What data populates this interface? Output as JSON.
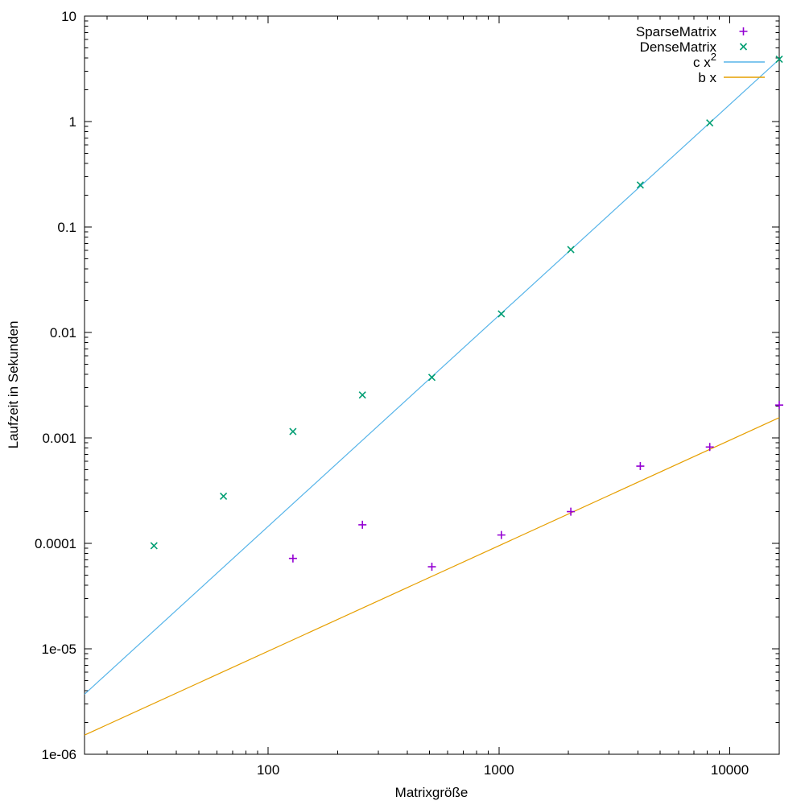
{
  "chart_data": {
    "type": "scatter",
    "log_x": true,
    "log_y": true,
    "title": "",
    "xlabel": "Matrixgröße",
    "ylabel": "Laufzeit in Sekunden",
    "xlim": [
      16,
      16384
    ],
    "ylim": [
      1e-06,
      10
    ],
    "grid": false,
    "legend_position": "top-right-inside",
    "x_ticks": [
      {
        "v": 100,
        "label": "100"
      },
      {
        "v": 1000,
        "label": "1000"
      },
      {
        "v": 10000,
        "label": "10000"
      }
    ],
    "y_ticks": [
      {
        "v": 1e-06,
        "label": "1e-06"
      },
      {
        "v": 1e-05,
        "label": "1e-05"
      },
      {
        "v": 0.0001,
        "label": "0.0001"
      },
      {
        "v": 0.001,
        "label": "0.001"
      },
      {
        "v": 0.01,
        "label": "0.01"
      },
      {
        "v": 0.1,
        "label": "0.1"
      },
      {
        "v": 1,
        "label": "1"
      },
      {
        "v": 10,
        "label": "10"
      }
    ],
    "series": [
      {
        "name": "SparseMatrix",
        "sup": "",
        "kind": "points",
        "marker": "plus",
        "color": "#9400d3",
        "x": [
          128,
          256,
          512,
          1024,
          2048,
          4096,
          8192,
          16384
        ],
        "y": [
          7.2e-05,
          0.00015,
          6e-05,
          0.00012,
          0.0002,
          0.00054,
          0.00082,
          0.00205
        ]
      },
      {
        "name": "DenseMatrix",
        "sup": "",
        "kind": "points",
        "marker": "cross",
        "color": "#009e73",
        "x": [
          32,
          64,
          128,
          256,
          512,
          1024,
          2048,
          4096,
          8192,
          16384
        ],
        "y": [
          9.5e-05,
          0.00028,
          0.00115,
          0.00255,
          0.00375,
          0.015,
          0.061,
          0.25,
          0.97,
          3.9
        ]
      },
      {
        "name": "c x",
        "sup": "2",
        "kind": "function",
        "form": "c*x^2",
        "coef": 1.45e-08,
        "exponent": 2,
        "color": "#56b4e9"
      },
      {
        "name": "b x",
        "sup": "",
        "kind": "function",
        "form": "b*x",
        "coef": 9.5e-08,
        "exponent": 1,
        "color": "#e69f00"
      }
    ]
  }
}
